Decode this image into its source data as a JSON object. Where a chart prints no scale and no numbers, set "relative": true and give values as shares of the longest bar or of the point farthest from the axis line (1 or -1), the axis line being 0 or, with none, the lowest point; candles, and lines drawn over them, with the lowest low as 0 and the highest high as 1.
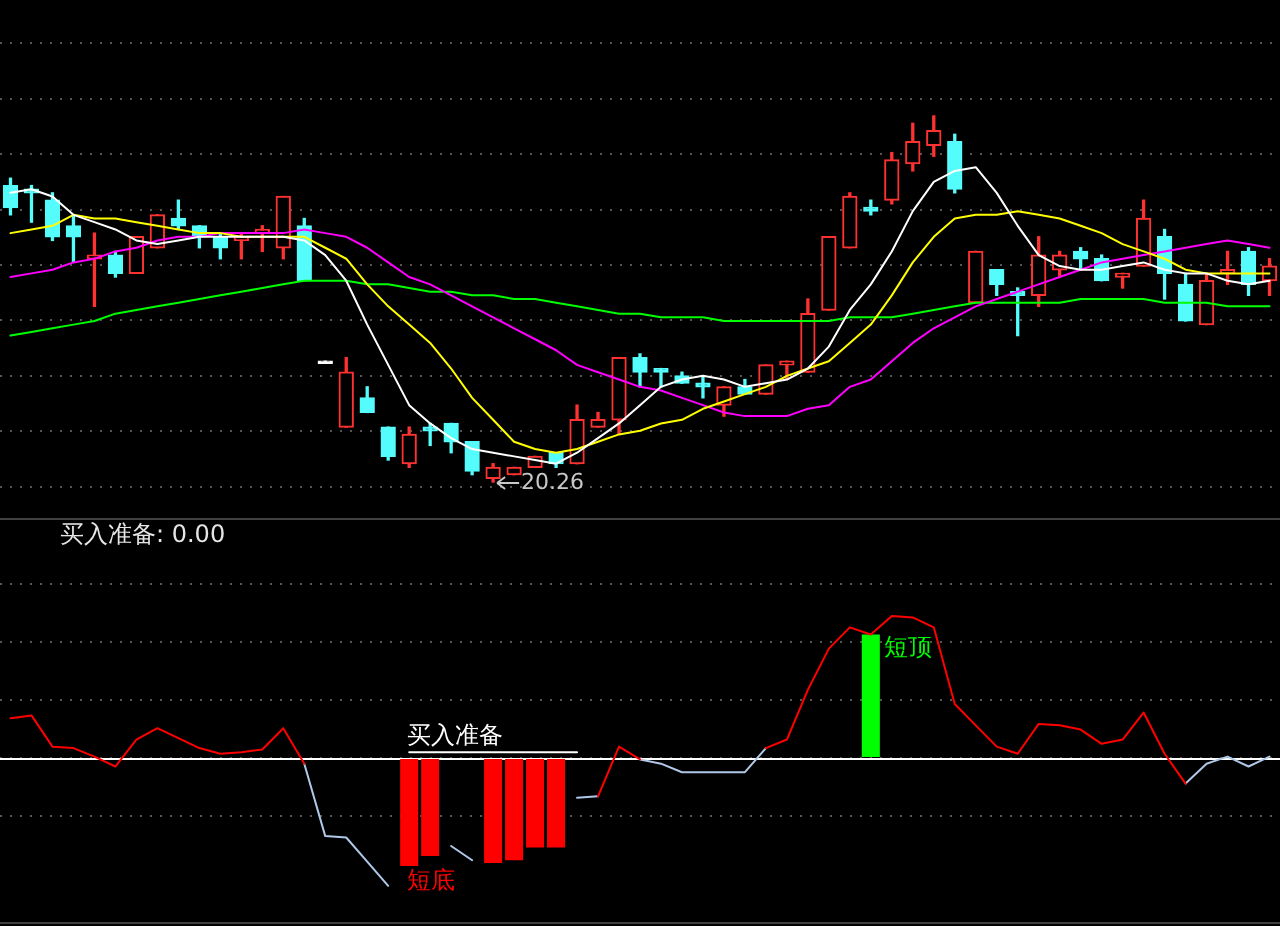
{
  "chart_data": [
    {
      "type": "candlestick",
      "relative": true,
      "grid": "y",
      "categories": [
        null,
        null,
        null,
        null,
        null,
        null,
        null,
        null,
        null,
        null,
        null,
        null,
        null,
        null,
        null,
        null,
        null,
        null,
        null,
        null,
        null,
        null,
        null,
        null,
        null,
        null,
        null,
        null,
        null,
        null,
        null,
        null,
        null,
        null,
        null,
        null,
        null,
        null,
        null,
        null,
        null,
        null,
        null,
        null,
        null,
        null,
        null,
        null,
        null,
        null,
        null,
        null,
        null,
        null,
        null,
        null,
        null,
        null,
        null,
        null,
        null
      ],
      "ohlc": [
        [
          0.81,
          0.83,
          0.73,
          0.75
        ],
        [
          0.8,
          0.81,
          0.71,
          0.79
        ],
        [
          0.77,
          0.79,
          0.66,
          0.67
        ],
        [
          0.7,
          0.73,
          0.6,
          0.67
        ],
        [
          0.61,
          0.68,
          0.48,
          0.62
        ],
        [
          0.62,
          0.63,
          0.56,
          0.57
        ],
        [
          0.57,
          0.67,
          0.57,
          0.67
        ],
        [
          0.64,
          0.73,
          0.64,
          0.73
        ],
        [
          0.72,
          0.77,
          0.69,
          0.7
        ],
        [
          0.7,
          0.7,
          0.64,
          0.67
        ],
        [
          0.67,
          0.68,
          0.61,
          0.64
        ],
        [
          0.66,
          0.68,
          0.61,
          0.67
        ],
        [
          0.68,
          0.7,
          0.63,
          0.69
        ],
        [
          0.64,
          0.78,
          0.61,
          0.78
        ],
        [
          0.7,
          0.72,
          0.55,
          0.55
        ],
        [
          0.33,
          0.33,
          0.33,
          0.33
        ],
        [
          0.15,
          0.34,
          0.15,
          0.3
        ],
        [
          0.23,
          0.26,
          0.19,
          0.19
        ],
        [
          0.15,
          0.15,
          0.06,
          0.07
        ],
        [
          0.05,
          0.15,
          0.04,
          0.13
        ],
        [
          0.15,
          0.16,
          0.1,
          0.14
        ],
        [
          0.16,
          0.16,
          0.08,
          0.11
        ],
        [
          0.11,
          0.11,
          0.02,
          0.03
        ],
        [
          0.01,
          0.05,
          0,
          0.04
        ],
        [
          0.02,
          0.04,
          0.02,
          0.04
        ],
        [
          0.04,
          0.07,
          0.04,
          0.07
        ],
        [
          0.08,
          0.08,
          0.04,
          0.05
        ],
        [
          0.05,
          0.21,
          0.05,
          0.17
        ],
        [
          0.15,
          0.19,
          0.15,
          0.17
        ],
        [
          0.17,
          0.34,
          0.13,
          0.34
        ],
        [
          0.34,
          0.35,
          0.26,
          0.3
        ],
        [
          0.31,
          0.31,
          0.26,
          0.3
        ],
        [
          0.29,
          0.3,
          0.27,
          0.27
        ],
        [
          0.27,
          0.29,
          0.23,
          0.26
        ],
        [
          0.21,
          0.26,
          0.18,
          0.26
        ],
        [
          0.26,
          0.28,
          0.24,
          0.24
        ],
        [
          0.24,
          0.32,
          0.24,
          0.32
        ],
        [
          0.32,
          0.33,
          0.28,
          0.33
        ],
        [
          0.3,
          0.5,
          0.3,
          0.46
        ],
        [
          0.47,
          0.67,
          0.47,
          0.67
        ],
        [
          0.64,
          0.79,
          0.64,
          0.78
        ],
        [
          0.75,
          0.77,
          0.73,
          0.74
        ],
        [
          0.77,
          0.9,
          0.76,
          0.88
        ],
        [
          0.87,
          0.98,
          0.85,
          0.93
        ],
        [
          0.92,
          1,
          0.89,
          0.96
        ],
        [
          0.93,
          0.95,
          0.79,
          0.8
        ],
        [
          0.49,
          0.63,
          0.49,
          0.63
        ],
        [
          0.58,
          0.58,
          0.51,
          0.54
        ],
        [
          0.52,
          0.53,
          0.4,
          0.51
        ],
        [
          0.51,
          0.67,
          0.48,
          0.62
        ],
        [
          0.58,
          0.63,
          0.56,
          0.62
        ],
        [
          0.63,
          0.64,
          0.58,
          0.61
        ],
        [
          0.61,
          0.62,
          0.55,
          0.55
        ],
        [
          0.56,
          0.57,
          0.53,
          0.57
        ],
        [
          0.59,
          0.77,
          0.59,
          0.72
        ],
        [
          0.67,
          0.69,
          0.5,
          0.57
        ],
        [
          0.54,
          0.57,
          0.44,
          0.44
        ],
        [
          0.43,
          0.57,
          0.43,
          0.55
        ],
        [
          0.57,
          0.63,
          0.54,
          0.58
        ],
        [
          0.63,
          0.64,
          0.51,
          0.54
        ],
        [
          0.55,
          0.61,
          0.51,
          0.59
        ]
      ],
      "colors": [
        "#54fcfc",
        "#54fcfc",
        "#54fcfc",
        "#54fcfc",
        "#ff3232",
        "#54fcfc",
        "#ff3232",
        "#ff3232",
        "#54fcfc",
        "#54fcfc",
        "#54fcfc",
        "#ff3232",
        "#ff3232",
        "#ff3232",
        "#54fcfc",
        "#ffffff",
        "#ff3232",
        "#54fcfc",
        "#54fcfc",
        "#ff3232",
        "#54fcfc",
        "#54fcfc",
        "#54fcfc",
        "#ff3232",
        "#ff3232",
        "#ff3232",
        "#54fcfc",
        "#ff3232",
        "#ff3232",
        "#ff3232",
        "#54fcfc",
        "#54fcfc",
        "#54fcfc",
        "#54fcfc",
        "#ff3232",
        "#54fcfc",
        "#ff3232",
        "#ff3232",
        "#ff3232",
        "#ff3232",
        "#ff3232",
        "#54fcfc",
        "#ff3232",
        "#ff3232",
        "#ff3232",
        "#54fcfc",
        "#ff3232",
        "#54fcfc",
        "#54fcfc",
        "#ff3232",
        "#ff3232",
        "#54fcfc",
        "#54fcfc",
        "#ff3232",
        "#ff3232",
        "#54fcfc",
        "#54fcfc",
        "#ff3232",
        "#ff3232",
        "#54fcfc",
        "#ff3232"
      ],
      "series": [
        {
          "type": "line",
          "color": "#ffffff",
          "values": [
            0.79,
            0.8,
            0.78,
            0.73,
            0.71,
            0.69,
            0.66,
            0.65,
            0.66,
            0.67,
            0.67,
            0.67,
            0.67,
            0.67,
            0.66,
            0.62,
            0.55,
            0.43,
            0.32,
            0.21,
            0.16,
            0.12,
            0.09,
            0.08,
            0.07,
            0.06,
            0.05,
            0.08,
            0.12,
            0.16,
            0.21,
            0.26,
            0.28,
            0.29,
            0.28,
            0.26,
            0.27,
            0.28,
            0.31,
            0.37,
            0.47,
            0.54,
            0.63,
            0.74,
            0.82,
            0.85,
            0.86,
            0.79,
            0.7,
            0.62,
            0.59,
            0.58,
            0.58,
            0.59,
            0.6,
            0.58,
            0.57,
            0.57,
            0.55,
            0.54,
            0.55
          ]
        },
        {
          "type": "line",
          "color": "#ffff00",
          "values": [
            0.68,
            0.69,
            0.7,
            0.73,
            0.72,
            0.72,
            0.71,
            0.7,
            0.69,
            0.68,
            0.68,
            0.67,
            0.67,
            0.67,
            0.67,
            0.64,
            0.61,
            0.54,
            0.48,
            0.43,
            0.38,
            0.31,
            0.23,
            0.17,
            0.11,
            0.09,
            0.08,
            0.09,
            0.11,
            0.13,
            0.14,
            0.16,
            0.17,
            0.2,
            0.22,
            0.24,
            0.26,
            0.29,
            0.31,
            0.33,
            0.38,
            0.43,
            0.51,
            0.6,
            0.67,
            0.72,
            0.73,
            0.73,
            0.74,
            0.73,
            0.72,
            0.7,
            0.68,
            0.65,
            0.63,
            0.61,
            0.58,
            0.57,
            0.57,
            0.57,
            0.57
          ]
        },
        {
          "type": "line",
          "color": "#ff00ff",
          "values": [
            0.56,
            0.57,
            0.58,
            0.6,
            0.61,
            0.63,
            0.64,
            0.66,
            0.67,
            0.67,
            0.68,
            0.68,
            0.68,
            0.68,
            0.69,
            0.68,
            0.67,
            0.64,
            0.6,
            0.56,
            0.54,
            0.51,
            0.48,
            0.45,
            0.42,
            0.39,
            0.36,
            0.32,
            0.3,
            0.28,
            0.26,
            0.25,
            0.23,
            0.21,
            0.19,
            0.18,
            0.18,
            0.18,
            0.2,
            0.21,
            0.26,
            0.28,
            0.33,
            0.38,
            0.42,
            0.45,
            0.48,
            0.5,
            0.52,
            0.54,
            0.56,
            0.58,
            0.6,
            0.61,
            0.62,
            0.63,
            0.64,
            0.65,
            0.66,
            0.65,
            0.64
          ]
        },
        {
          "type": "line",
          "color": "#00ff00",
          "values": [
            0.4,
            0.41,
            0.42,
            0.43,
            0.44,
            0.46,
            0.47,
            0.48,
            0.49,
            0.5,
            0.51,
            0.52,
            0.53,
            0.54,
            0.55,
            0.55,
            0.55,
            0.54,
            0.54,
            0.53,
            0.52,
            0.52,
            0.51,
            0.51,
            0.5,
            0.5,
            0.49,
            0.48,
            0.47,
            0.46,
            0.46,
            0.45,
            0.45,
            0.45,
            0.44,
            0.44,
            0.44,
            0.44,
            0.44,
            0.44,
            0.45,
            0.45,
            0.45,
            0.46,
            0.47,
            0.48,
            0.49,
            0.49,
            0.49,
            0.49,
            0.49,
            0.5,
            0.5,
            0.5,
            0.5,
            0.49,
            0.49,
            0.49,
            0.48,
            0.48,
            0.48
          ]
        }
      ],
      "annotations": [
        "20.26"
      ]
    },
    {
      "type": "line",
      "relative": true,
      "grid": "y",
      "title": "买入准备: 0.00",
      "categories": [
        null,
        null,
        null,
        null,
        null,
        null,
        null,
        null,
        null,
        null,
        null,
        null,
        null,
        null,
        null,
        null,
        null,
        null,
        null,
        null,
        null,
        null,
        null,
        null,
        null,
        null,
        null,
        null,
        null,
        null,
        null,
        null,
        null,
        null,
        null,
        null,
        null,
        null,
        null,
        null,
        null,
        null,
        null,
        null,
        null,
        null,
        null,
        null,
        null,
        null,
        null,
        null,
        null,
        null,
        null,
        null,
        null,
        null,
        null,
        null,
        null
      ],
      "series": [
        {
          "type": "line",
          "color": "#ff0000",
          "values": [
            0.28,
            0.3,
            0.08,
            0.07,
            0.01,
            -0.06,
            0.13,
            0.21,
            0.14,
            0.07,
            0.03,
            0.04,
            0.06,
            0.21,
            -0.04,
            null,
            null,
            null,
            null,
            null,
            null,
            null,
            null,
            null,
            null,
            null,
            null,
            null,
            -0.27,
            0.08,
            -0.01,
            null,
            null,
            null,
            null,
            null,
            0.07,
            0.13,
            0.48,
            0.77,
            0.92,
            0.87,
            1,
            0.99,
            0.92,
            0.38,
            0.23,
            0.08,
            0.03,
            0.24,
            0.23,
            0.2,
            0.1,
            0.13,
            0.32,
            0.03,
            -0.18,
            null,
            null,
            null,
            null
          ]
        },
        {
          "type": "line",
          "color": "#b0c8e8",
          "values": [
            null,
            null,
            null,
            null,
            null,
            null,
            null,
            null,
            null,
            null,
            null,
            null,
            null,
            null,
            -0.04,
            -0.55,
            -0.56,
            -0.73,
            -0.9,
            null,
            null,
            -0.62,
            -0.72,
            null,
            null,
            null,
            null,
            -0.28,
            -0.27,
            null,
            -0.01,
            -0.04,
            -0.1,
            -0.1,
            -0.1,
            -0.1,
            0.07,
            null,
            null,
            null,
            null,
            null,
            null,
            null,
            null,
            null,
            null,
            null,
            null,
            null,
            null,
            null,
            null,
            null,
            null,
            null,
            -0.18,
            -0.04,
            0.01,
            -0.06,
            0.01
          ]
        },
        {
          "type": "line",
          "name": "买入准备",
          "color": "#ffffff",
          "values": [
            null,
            null,
            null,
            null,
            null,
            null,
            null,
            null,
            null,
            null,
            null,
            null,
            null,
            null,
            null,
            null,
            null,
            null,
            null,
            0.04,
            0.04,
            0.04,
            0.04,
            0.04,
            0.04,
            0.04,
            0.04,
            0.04,
            null,
            null,
            null,
            null,
            null,
            null,
            null,
            null,
            null,
            null,
            null,
            null,
            null,
            null,
            null,
            null,
            null,
            null,
            null,
            null,
            null,
            null,
            null,
            null,
            null,
            null,
            null,
            null,
            null,
            null,
            null,
            null,
            null
          ]
        },
        {
          "type": "bar",
          "name": "短底",
          "color": "#ff0000",
          "values": [
            null,
            null,
            null,
            null,
            null,
            null,
            null,
            null,
            null,
            null,
            null,
            null,
            null,
            null,
            null,
            null,
            null,
            null,
            null,
            -0.76,
            -0.69,
            null,
            null,
            -0.74,
            -0.72,
            -0.63,
            -0.63,
            null,
            null,
            null,
            null,
            null,
            null,
            null,
            null,
            null,
            null,
            null,
            null,
            null,
            null,
            null,
            null,
            null,
            null,
            null,
            null,
            null,
            null,
            null,
            null,
            null,
            null,
            null,
            null,
            null,
            null,
            null,
            null,
            null,
            null
          ]
        },
        {
          "type": "bar",
          "name": "短顶",
          "color": "#00ff00",
          "values": [
            null,
            null,
            null,
            null,
            null,
            null,
            null,
            null,
            null,
            null,
            null,
            null,
            null,
            null,
            null,
            null,
            null,
            null,
            null,
            null,
            null,
            null,
            null,
            null,
            null,
            null,
            null,
            null,
            null,
            null,
            null,
            null,
            null,
            null,
            null,
            null,
            null,
            null,
            null,
            null,
            null,
            0.87,
            null,
            null,
            null,
            null,
            null,
            null,
            null,
            null,
            null,
            null,
            null,
            null,
            null,
            null,
            null,
            null,
            null,
            null,
            null
          ]
        }
      ],
      "ref_lines": [
        {
          "axis": "y",
          "value": 0,
          "color": "#ffffff"
        }
      ]
    }
  ]
}
